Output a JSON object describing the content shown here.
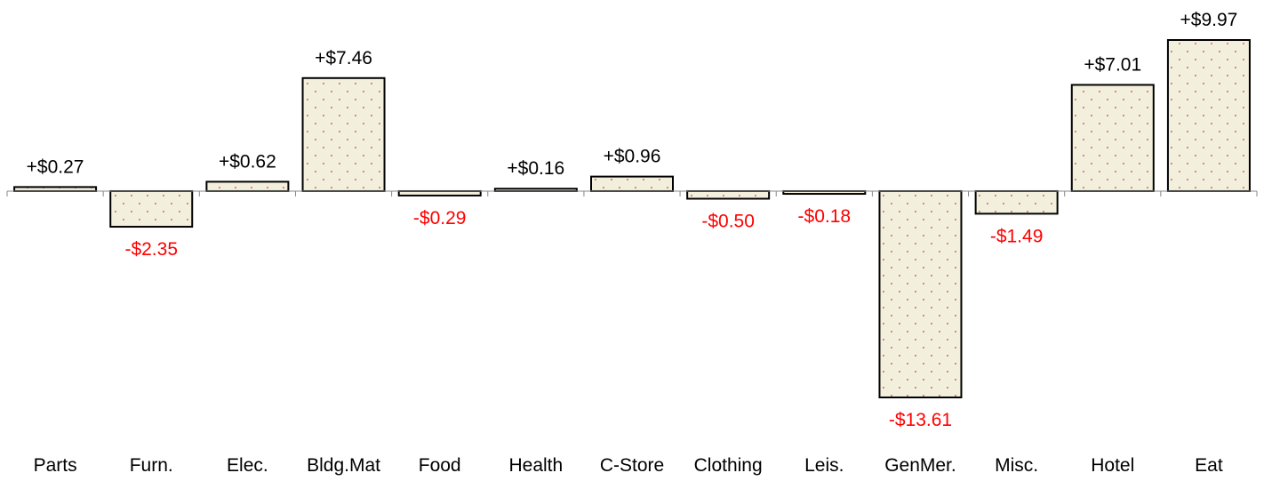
{
  "chart_data": {
    "type": "bar",
    "categories": [
      "Parts",
      "Furn.",
      "Elec.",
      "Bldg.Mat",
      "Food",
      "Health",
      "C-Store",
      "Clothing",
      "Leis.",
      "GenMer.",
      "Misc.",
      "Hotel",
      "Eat"
    ],
    "values": [
      0.27,
      -2.35,
      0.62,
      7.46,
      -0.29,
      0.16,
      0.96,
      -0.5,
      -0.18,
      -13.61,
      -1.49,
      7.01,
      9.97
    ],
    "value_labels": [
      "+$0.27",
      "-$2.35",
      "+$0.62",
      "+$7.46",
      "-$0.29",
      "+$0.16",
      "+$0.96",
      "-$0.50",
      "-$0.18",
      "-$13.61",
      "-$1.49",
      "+$7.01",
      "+$9.97"
    ],
    "color": "#f2efdc",
    "positive_label_color": "#000000",
    "negative_label_color": "#ff0000"
  }
}
